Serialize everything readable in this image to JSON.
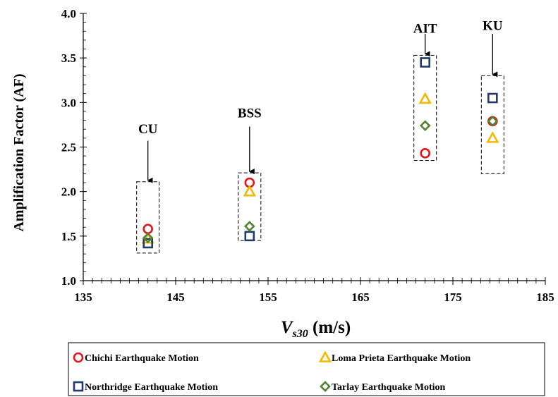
{
  "chart_data": {
    "type": "scatter",
    "xlabel_main": "V",
    "xlabel_sub": "s30",
    "xlabel_unit": " (m/s)",
    "ylabel": "Amplification Factor (AF)",
    "xlim": [
      135,
      185
    ],
    "ylim": [
      1.0,
      4.0
    ],
    "xticks": [
      "135",
      "145",
      "155",
      "165",
      "175",
      "185"
    ],
    "yticks": [
      "1.0",
      "1.5",
      "2.0",
      "2.5",
      "3.0",
      "3.5",
      "4.0"
    ],
    "grid": false,
    "legend_position": "bottom",
    "series": [
      {
        "name": "Chichi Earthquake Motion",
        "marker": "circle",
        "color": "#e8141b",
        "points": [
          {
            "x": 142,
            "y": 1.58
          },
          {
            "x": 153,
            "y": 2.1
          },
          {
            "x": 172,
            "y": 2.43
          },
          {
            "x": 179.3,
            "y": 2.79
          }
        ]
      },
      {
        "name": "Loma Prieta Earthquake Motion",
        "marker": "triangle",
        "color": "#f5b800",
        "points": [
          {
            "x": 142,
            "y": 1.47
          },
          {
            "x": 153,
            "y": 2.0
          },
          {
            "x": 172,
            "y": 3.04
          },
          {
            "x": 179.3,
            "y": 2.6
          }
        ]
      },
      {
        "name": "Northridge Earthquake Motion",
        "marker": "square",
        "color": "#1f3a6b",
        "points": [
          {
            "x": 142,
            "y": 1.42
          },
          {
            "x": 153,
            "y": 1.5
          },
          {
            "x": 172,
            "y": 3.45
          },
          {
            "x": 179.3,
            "y": 3.05
          }
        ]
      },
      {
        "name": "Tarlay Earthquake Motion",
        "marker": "diamond",
        "color": "#548235",
        "points": [
          {
            "x": 142,
            "y": 1.48
          },
          {
            "x": 153,
            "y": 1.61
          },
          {
            "x": 172,
            "y": 2.74
          },
          {
            "x": 179.3,
            "y": 2.79
          }
        ]
      }
    ],
    "annotations": [
      {
        "label": "CU",
        "x": 142,
        "box_ymin": 1.31,
        "box_ymax": 2.11,
        "label_y": 2.7,
        "arrow_from": 2.57,
        "arrow_to": 2.11
      },
      {
        "label": "BSS",
        "x": 153,
        "box_ymin": 1.45,
        "box_ymax": 2.21,
        "label_y": 2.88,
        "arrow_from": 2.73,
        "arrow_to": 2.21
      },
      {
        "label": "AIT",
        "x": 172,
        "box_ymin": 2.35,
        "box_ymax": 3.53,
        "label_y": 3.83,
        "arrow_from": 3.77,
        "arrow_to": 3.53
      },
      {
        "label": "KU",
        "x": 179.3,
        "box_ymin": 2.2,
        "box_ymax": 3.3,
        "label_y": 3.86,
        "arrow_from": 3.77,
        "arrow_to": 3.3
      }
    ]
  }
}
